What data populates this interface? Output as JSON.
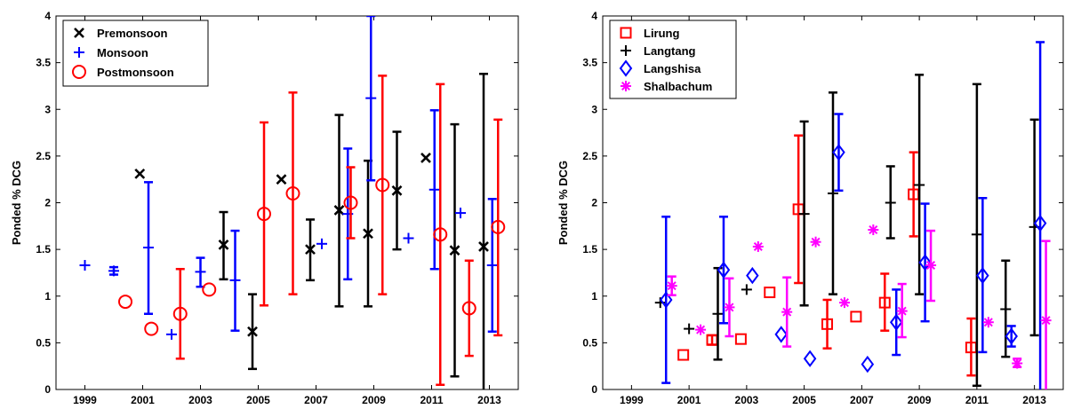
{
  "chart_data": [
    {
      "type": "scatter",
      "title": "",
      "xlabel": "",
      "ylabel": "Ponded % DCG",
      "xlim": [
        1998,
        2014
      ],
      "ylim": [
        0,
        4
      ],
      "xticks": [
        1999,
        2001,
        2003,
        2005,
        2007,
        2009,
        2011,
        2013
      ],
      "yticks": [
        0,
        0.5,
        1,
        1.5,
        2,
        2.5,
        3,
        3.5,
        4
      ],
      "xtick_labels": [
        "1999",
        "2001",
        "2003",
        "2005",
        "2007",
        "2009",
        "2011",
        "2013"
      ],
      "ytick_labels": [
        "0",
        "0.5",
        "1",
        "1.5",
        "2",
        "2.5",
        "3",
        "3.5",
        "4"
      ],
      "grid": false,
      "legend": "top-left",
      "series": [
        {
          "name": "Premonsoon",
          "color": "#000000",
          "marker": "x",
          "points": [
            {
              "x": 2000.9,
              "y": 2.31
            },
            {
              "x": 2003.8,
              "y": 1.55,
              "lo": 1.18,
              "hi": 1.9
            },
            {
              "x": 2004.8,
              "y": 0.62,
              "lo": 0.22,
              "hi": 1.02
            },
            {
              "x": 2005.8,
              "y": 2.25
            },
            {
              "x": 2006.8,
              "y": 1.5,
              "lo": 1.17,
              "hi": 1.82
            },
            {
              "x": 2007.8,
              "y": 1.92,
              "lo": 0.89,
              "hi": 2.94
            },
            {
              "x": 2008.8,
              "y": 1.67,
              "lo": 0.89,
              "hi": 2.45
            },
            {
              "x": 2009.8,
              "y": 2.13,
              "lo": 1.5,
              "hi": 2.76
            },
            {
              "x": 2010.8,
              "y": 2.48
            },
            {
              "x": 2011.8,
              "y": 1.49,
              "lo": 0.14,
              "hi": 2.84
            },
            {
              "x": 2012.8,
              "y": 1.53,
              "lo": -0.33,
              "hi": 3.38
            }
          ]
        },
        {
          "name": "Monsoon",
          "color": "#0000ff",
          "marker": "+",
          "points": [
            {
              "x": 1999.0,
              "y": 1.33
            },
            {
              "x": 2000.0,
              "y": 1.27,
              "lo": 1.23,
              "hi": 1.31
            },
            {
              "x": 2001.2,
              "y": 1.52,
              "lo": 0.81,
              "hi": 2.22
            },
            {
              "x": 2002.0,
              "y": 0.59
            },
            {
              "x": 2003.0,
              "y": 1.26,
              "lo": 1.1,
              "hi": 1.41
            },
            {
              "x": 2004.2,
              "y": 1.17,
              "lo": 0.63,
              "hi": 1.7
            },
            {
              "x": 2007.2,
              "y": 1.56
            },
            {
              "x": 2008.1,
              "y": 1.88,
              "lo": 1.18,
              "hi": 2.58
            },
            {
              "x": 2008.9,
              "y": 3.12,
              "lo": 2.24,
              "hi": 4.0
            },
            {
              "x": 2010.2,
              "y": 1.62
            },
            {
              "x": 2011.1,
              "y": 2.14,
              "lo": 1.29,
              "hi": 2.99
            },
            {
              "x": 2012.0,
              "y": 1.89
            },
            {
              "x": 2013.1,
              "y": 1.33,
              "lo": 0.62,
              "hi": 2.04
            }
          ]
        },
        {
          "name": "Postmonsoon",
          "color": "#ff0000",
          "marker": "o",
          "points": [
            {
              "x": 2000.4,
              "y": 0.94
            },
            {
              "x": 2001.3,
              "y": 0.65
            },
            {
              "x": 2002.3,
              "y": 0.81,
              "lo": 0.33,
              "hi": 1.29
            },
            {
              "x": 2003.3,
              "y": 1.07
            },
            {
              "x": 2005.2,
              "y": 1.88,
              "lo": 0.9,
              "hi": 2.86
            },
            {
              "x": 2006.2,
              "y": 2.1,
              "lo": 1.02,
              "hi": 3.18
            },
            {
              "x": 2008.2,
              "y": 2.0,
              "lo": 1.62,
              "hi": 2.38
            },
            {
              "x": 2009.3,
              "y": 2.19,
              "lo": 1.02,
              "hi": 3.36
            },
            {
              "x": 2011.3,
              "y": 1.66,
              "lo": 0.05,
              "hi": 3.27
            },
            {
              "x": 2012.3,
              "y": 0.87,
              "lo": 0.36,
              "hi": 1.38
            },
            {
              "x": 2013.3,
              "y": 1.74,
              "lo": 0.58,
              "hi": 2.89
            }
          ]
        }
      ]
    },
    {
      "type": "scatter",
      "title": "",
      "xlabel": "",
      "ylabel": "Ponded % DCG",
      "xlim": [
        1998,
        2014
      ],
      "ylim": [
        0,
        4
      ],
      "xticks": [
        1999,
        2001,
        2003,
        2005,
        2007,
        2009,
        2011,
        2013
      ],
      "yticks": [
        0,
        0.5,
        1,
        1.5,
        2,
        2.5,
        3,
        3.5,
        4
      ],
      "xtick_labels": [
        "1999",
        "2001",
        "2003",
        "2005",
        "2007",
        "2009",
        "2011",
        "2013"
      ],
      "ytick_labels": [
        "0",
        "0.5",
        "1",
        "1.5",
        "2",
        "2.5",
        "3",
        "3.5",
        "4"
      ],
      "grid": false,
      "legend": "top-left",
      "series": [
        {
          "name": "Lirung",
          "color": "#ff0000",
          "marker": "square",
          "points": [
            {
              "x": 2000.8,
              "y": 0.37
            },
            {
              "x": 2001.8,
              "y": 0.53,
              "lo": 0.48,
              "hi": 0.58
            },
            {
              "x": 2002.8,
              "y": 0.54
            },
            {
              "x": 2003.8,
              "y": 1.04
            },
            {
              "x": 2004.8,
              "y": 1.93,
              "lo": 1.14,
              "hi": 2.72
            },
            {
              "x": 2005.8,
              "y": 0.7,
              "lo": 0.44,
              "hi": 0.96
            },
            {
              "x": 2006.8,
              "y": 0.78
            },
            {
              "x": 2007.8,
              "y": 0.93,
              "lo": 0.63,
              "hi": 1.24
            },
            {
              "x": 2008.8,
              "y": 2.09,
              "lo": 1.64,
              "hi": 2.54
            },
            {
              "x": 2010.8,
              "y": 0.45,
              "lo": 0.15,
              "hi": 0.76
            }
          ]
        },
        {
          "name": "Langtang",
          "color": "#000000",
          "marker": "+",
          "points": [
            {
              "x": 2000.0,
              "y": 0.93
            },
            {
              "x": 2001.0,
              "y": 0.65
            },
            {
              "x": 2002.0,
              "y": 0.81,
              "lo": 0.32,
              "hi": 1.3
            },
            {
              "x": 2003.0,
              "y": 1.07
            },
            {
              "x": 2005.0,
              "y": 1.88,
              "lo": 0.9,
              "hi": 2.87
            },
            {
              "x": 2006.0,
              "y": 2.1,
              "lo": 1.02,
              "hi": 3.18
            },
            {
              "x": 2008.0,
              "y": 2.0,
              "lo": 1.62,
              "hi": 2.39
            },
            {
              "x": 2009.0,
              "y": 2.19,
              "lo": 1.02,
              "hi": 3.37
            },
            {
              "x": 2011.0,
              "y": 1.66,
              "lo": 0.04,
              "hi": 3.27
            },
            {
              "x": 2012.0,
              "y": 0.86,
              "lo": 0.35,
              "hi": 1.38
            },
            {
              "x": 2013.0,
              "y": 1.74,
              "lo": 0.58,
              "hi": 2.89
            }
          ]
        },
        {
          "name": "Langshisa",
          "color": "#0000ff",
          "marker": "diamond",
          "points": [
            {
              "x": 2000.2,
              "y": 0.96,
              "lo": 0.07,
              "hi": 1.85
            },
            {
              "x": 2002.2,
              "y": 1.28,
              "lo": 0.71,
              "hi": 1.85
            },
            {
              "x": 2003.2,
              "y": 1.22
            },
            {
              "x": 2004.2,
              "y": 0.59
            },
            {
              "x": 2005.2,
              "y": 0.33
            },
            {
              "x": 2006.2,
              "y": 2.54,
              "lo": 2.13,
              "hi": 2.95
            },
            {
              "x": 2007.2,
              "y": 0.27
            },
            {
              "x": 2008.2,
              "y": 0.72,
              "lo": 0.37,
              "hi": 1.07
            },
            {
              "x": 2009.2,
              "y": 1.36,
              "lo": 0.73,
              "hi": 1.99
            },
            {
              "x": 2011.2,
              "y": 1.22,
              "lo": 0.4,
              "hi": 2.05
            },
            {
              "x": 2012.2,
              "y": 0.57,
              "lo": 0.46,
              "hi": 0.68
            },
            {
              "x": 2013.2,
              "y": 1.78,
              "lo": -0.16,
              "hi": 3.72
            }
          ]
        },
        {
          "name": "Shalbachum",
          "color": "#ff00ff",
          "marker": "asterisk",
          "points": [
            {
              "x": 2000.4,
              "y": 1.11,
              "lo": 1.01,
              "hi": 1.21
            },
            {
              "x": 2001.4,
              "y": 0.64
            },
            {
              "x": 2002.4,
              "y": 0.88,
              "lo": 0.57,
              "hi": 1.19
            },
            {
              "x": 2003.4,
              "y": 1.53
            },
            {
              "x": 2004.4,
              "y": 0.83,
              "lo": 0.46,
              "hi": 1.2
            },
            {
              "x": 2005.4,
              "y": 1.58
            },
            {
              "x": 2006.4,
              "y": 0.93
            },
            {
              "x": 2007.4,
              "y": 1.71
            },
            {
              "x": 2008.4,
              "y": 0.84,
              "lo": 0.56,
              "hi": 1.13
            },
            {
              "x": 2009.4,
              "y": 1.33,
              "lo": 0.95,
              "hi": 1.7
            },
            {
              "x": 2011.4,
              "y": 0.72
            },
            {
              "x": 2012.4,
              "y": 0.28,
              "lo": 0.24,
              "hi": 0.33
            },
            {
              "x": 2013.4,
              "y": 0.74,
              "lo": -0.11,
              "hi": 1.59
            }
          ]
        }
      ]
    }
  ]
}
